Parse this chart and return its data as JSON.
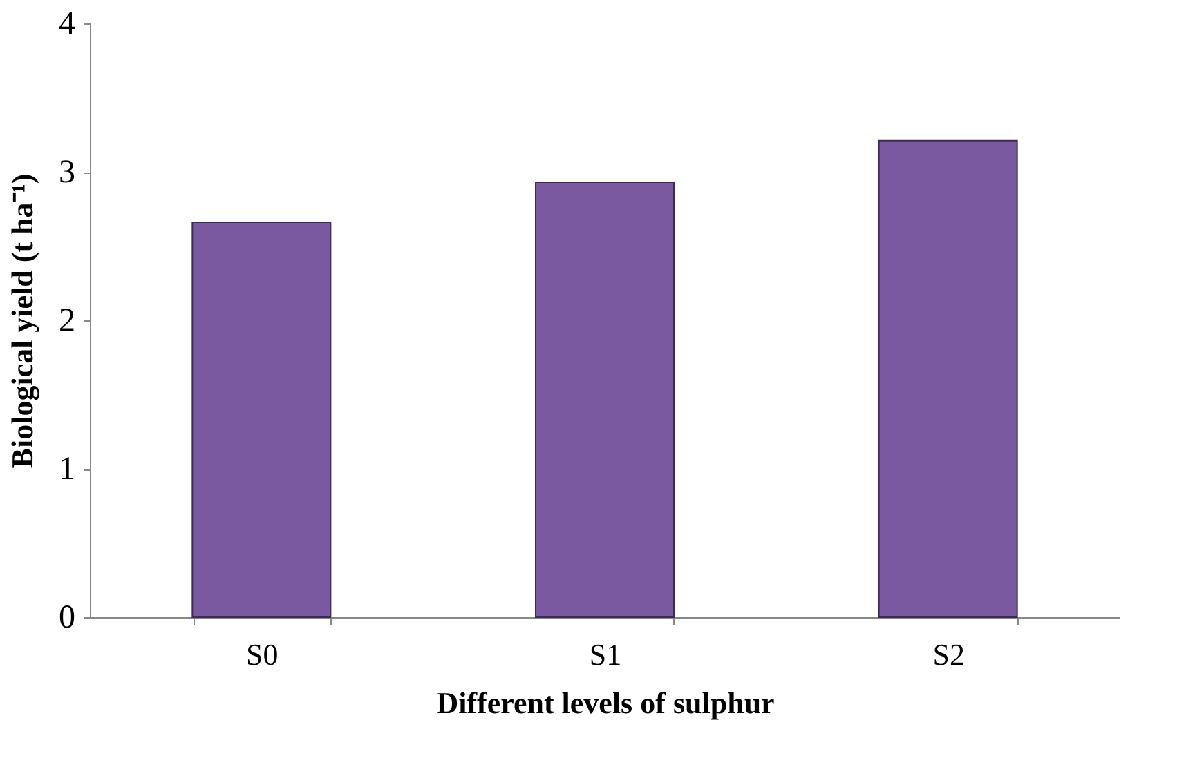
{
  "chart_data": {
    "type": "bar",
    "xlabel": "Different levels of sulphur",
    "ylabel": "Biological yield (t ha⁻¹)",
    "categories": [
      "S0",
      "S1",
      "S2"
    ],
    "values": [
      2.66,
      2.93,
      3.21
    ],
    "color": "#7a59a0",
    "ylim": [
      0,
      4
    ],
    "yticks": [
      0,
      1,
      2,
      3,
      4
    ],
    "grid": false
  }
}
